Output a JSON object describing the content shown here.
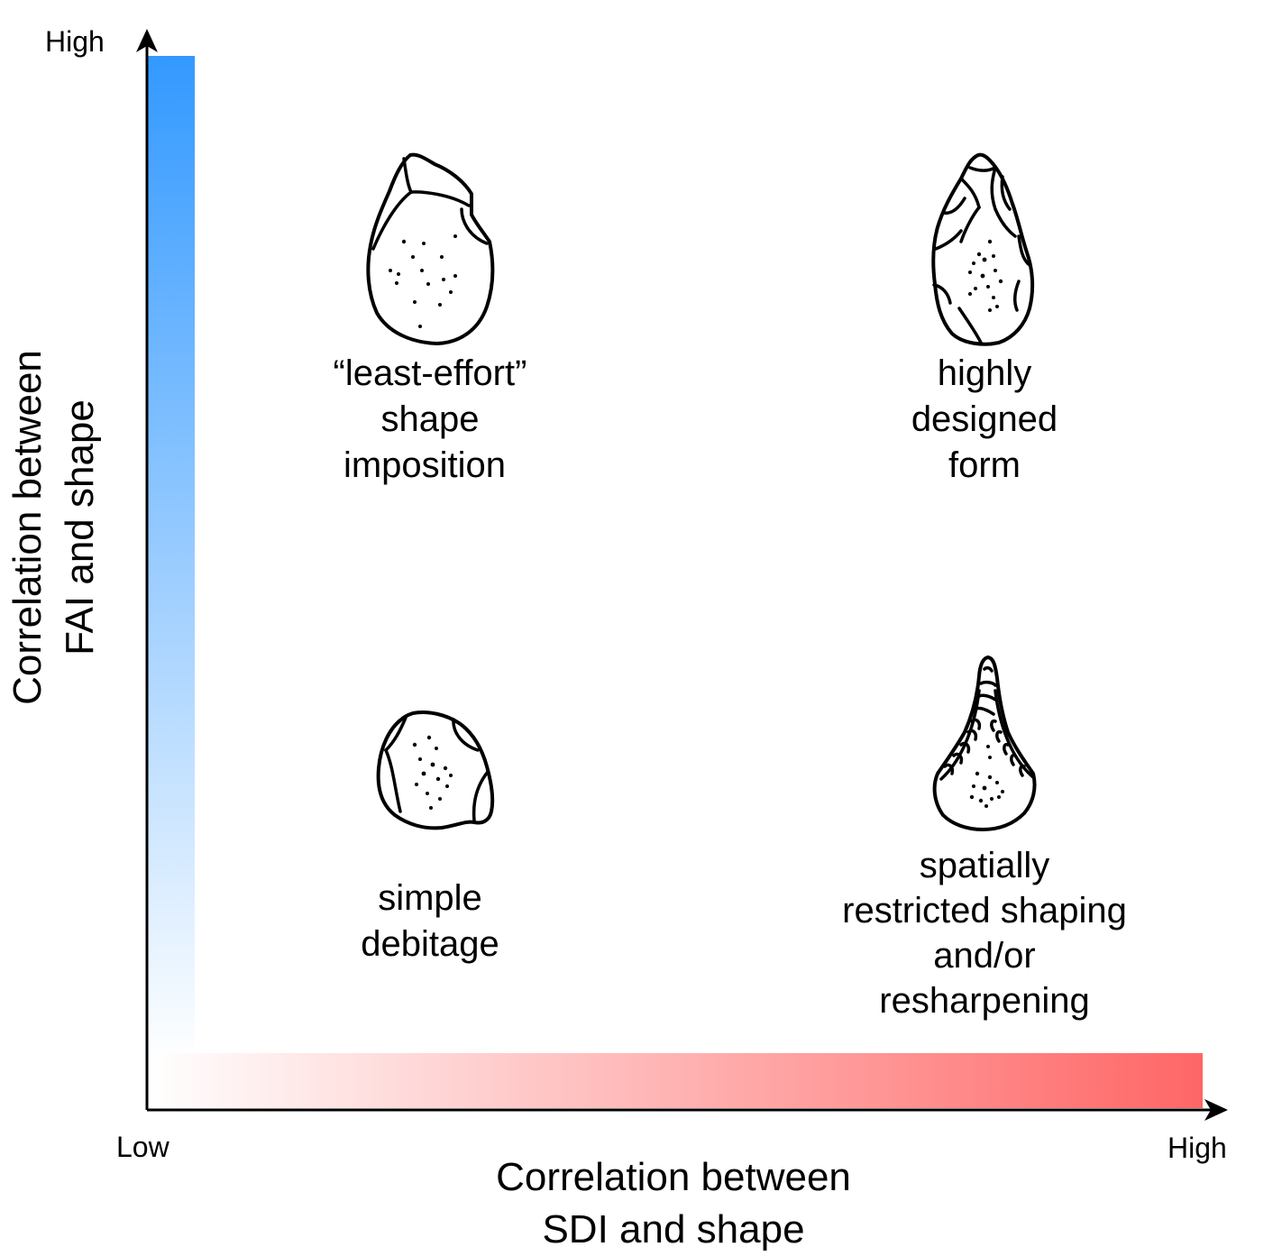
{
  "axes": {
    "y_high": "High",
    "x_low": "Low",
    "x_high": "High",
    "y_title": [
      "Correlation between",
      "FAI and shape"
    ],
    "x_title": [
      "Correlation between",
      "SDI and shape"
    ],
    "y_gradient": {
      "from": "#ffffff",
      "to": "#3399ff"
    },
    "x_gradient": {
      "from": "#ffffff",
      "to": "#ff6666"
    }
  },
  "quadrants": {
    "top_left": {
      "lines": [
        "“least-effort”",
        "shape",
        "imposition"
      ],
      "icon": "least-effort-tool-icon"
    },
    "top_right": {
      "lines": [
        "highly",
        "designed",
        "form"
      ],
      "icon": "highly-designed-tool-icon"
    },
    "bottom_left": {
      "lines": [
        "simple",
        "debitage"
      ],
      "icon": "simple-debitage-flake-icon"
    },
    "bottom_right": {
      "lines": [
        "spatially",
        "restricted shaping",
        "and/or",
        "resharpening"
      ],
      "icon": "restricted-shaping-tool-icon"
    }
  }
}
